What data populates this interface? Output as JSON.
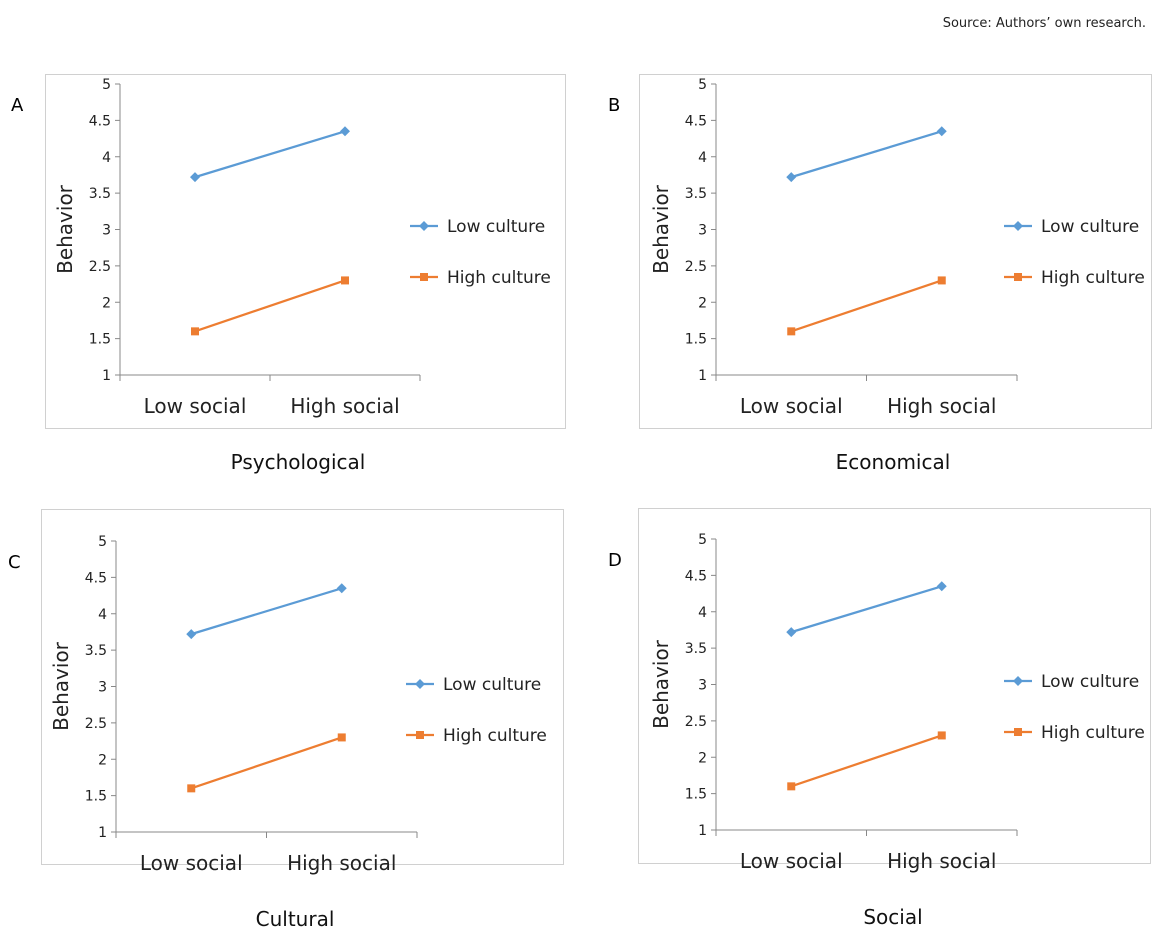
{
  "source": "Source: Authors’ own research.",
  "colors": {
    "low": "#5b9bd5",
    "high": "#ed7d31",
    "axis": "#888888",
    "frame": "#d0d0d0"
  },
  "chart_data": [
    {
      "type": "line",
      "panel_label": "A",
      "caption": "Psychological",
      "ylabel": "Behavior",
      "xlabel": "",
      "categories": [
        "Low social",
        "High social"
      ],
      "yticks": [
        "1",
        "1.5",
        "2",
        "2.5",
        "3",
        "3.5",
        "4",
        "4.5",
        "5"
      ],
      "ylim": [
        1,
        5
      ],
      "grid": false,
      "legend_position": "right",
      "series": [
        {
          "name": "Low culture",
          "marker": "diamond",
          "values": [
            3.72,
            4.35
          ]
        },
        {
          "name": "High culture",
          "marker": "square",
          "values": [
            1.6,
            2.3
          ]
        }
      ]
    },
    {
      "type": "line",
      "panel_label": "B",
      "caption": "Economical",
      "ylabel": "Behavior",
      "xlabel": "",
      "categories": [
        "Low social",
        "High social"
      ],
      "yticks": [
        "1",
        "1.5",
        "2",
        "2.5",
        "3",
        "3.5",
        "4",
        "4.5",
        "5"
      ],
      "ylim": [
        1,
        5
      ],
      "grid": false,
      "legend_position": "right",
      "series": [
        {
          "name": "Low culture",
          "marker": "diamond",
          "values": [
            3.72,
            4.35
          ]
        },
        {
          "name": "High culture",
          "marker": "square",
          "values": [
            1.6,
            2.3
          ]
        }
      ]
    },
    {
      "type": "line",
      "panel_label": "C",
      "caption": "Cultural",
      "ylabel": "Behavior",
      "xlabel": "",
      "categories": [
        "Low social",
        "High social"
      ],
      "yticks": [
        "1",
        "1.5",
        "2",
        "2.5",
        "3",
        "3.5",
        "4",
        "4.5",
        "5"
      ],
      "ylim": [
        1,
        5
      ],
      "grid": false,
      "legend_position": "right",
      "series": [
        {
          "name": "Low culture",
          "marker": "diamond",
          "values": [
            3.72,
            4.35
          ]
        },
        {
          "name": "High culture",
          "marker": "square",
          "values": [
            1.6,
            2.3
          ]
        }
      ]
    },
    {
      "type": "line",
      "panel_label": "D",
      "caption": "Social",
      "ylabel": "Behavior",
      "xlabel": "",
      "categories": [
        "Low social",
        "High social"
      ],
      "yticks": [
        "1",
        "1.5",
        "2",
        "2.5",
        "3",
        "3.5",
        "4",
        "4.5",
        "5"
      ],
      "ylim": [
        1,
        5
      ],
      "grid": false,
      "legend_position": "right",
      "series": [
        {
          "name": "Low culture",
          "marker": "diamond",
          "values": [
            3.72,
            4.35
          ]
        },
        {
          "name": "High culture",
          "marker": "square",
          "values": [
            1.6,
            2.3
          ]
        }
      ]
    }
  ]
}
